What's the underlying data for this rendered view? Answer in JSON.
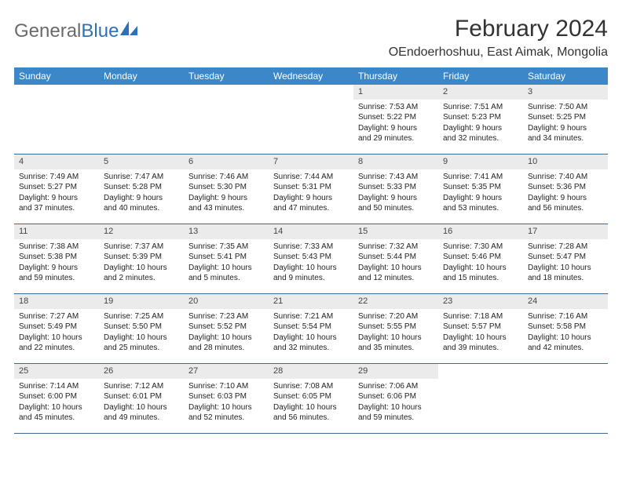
{
  "logo": {
    "text1": "General",
    "text2": "Blue"
  },
  "title": "February 2024",
  "location": "OEndoerhoshuu, East Aimak, Mongolia",
  "colors": {
    "header_bg": "#3b87c8",
    "header_text": "#ffffff",
    "daynum_bg": "#ebebeb",
    "row_border": "#3b6a94",
    "logo_blue": "#2d72b8",
    "body_bg": "#ffffff"
  },
  "day_headers": [
    "Sunday",
    "Monday",
    "Tuesday",
    "Wednesday",
    "Thursday",
    "Friday",
    "Saturday"
  ],
  "weeks": [
    [
      {
        "empty": true
      },
      {
        "empty": true
      },
      {
        "empty": true
      },
      {
        "empty": true
      },
      {
        "num": "1",
        "sunrise": "Sunrise: 7:53 AM",
        "sunset": "Sunset: 5:22 PM",
        "day1": "Daylight: 9 hours",
        "day2": "and 29 minutes."
      },
      {
        "num": "2",
        "sunrise": "Sunrise: 7:51 AM",
        "sunset": "Sunset: 5:23 PM",
        "day1": "Daylight: 9 hours",
        "day2": "and 32 minutes."
      },
      {
        "num": "3",
        "sunrise": "Sunrise: 7:50 AM",
        "sunset": "Sunset: 5:25 PM",
        "day1": "Daylight: 9 hours",
        "day2": "and 34 minutes."
      }
    ],
    [
      {
        "num": "4",
        "sunrise": "Sunrise: 7:49 AM",
        "sunset": "Sunset: 5:27 PM",
        "day1": "Daylight: 9 hours",
        "day2": "and 37 minutes."
      },
      {
        "num": "5",
        "sunrise": "Sunrise: 7:47 AM",
        "sunset": "Sunset: 5:28 PM",
        "day1": "Daylight: 9 hours",
        "day2": "and 40 minutes."
      },
      {
        "num": "6",
        "sunrise": "Sunrise: 7:46 AM",
        "sunset": "Sunset: 5:30 PM",
        "day1": "Daylight: 9 hours",
        "day2": "and 43 minutes."
      },
      {
        "num": "7",
        "sunrise": "Sunrise: 7:44 AM",
        "sunset": "Sunset: 5:31 PM",
        "day1": "Daylight: 9 hours",
        "day2": "and 47 minutes."
      },
      {
        "num": "8",
        "sunrise": "Sunrise: 7:43 AM",
        "sunset": "Sunset: 5:33 PM",
        "day1": "Daylight: 9 hours",
        "day2": "and 50 minutes."
      },
      {
        "num": "9",
        "sunrise": "Sunrise: 7:41 AM",
        "sunset": "Sunset: 5:35 PM",
        "day1": "Daylight: 9 hours",
        "day2": "and 53 minutes."
      },
      {
        "num": "10",
        "sunrise": "Sunrise: 7:40 AM",
        "sunset": "Sunset: 5:36 PM",
        "day1": "Daylight: 9 hours",
        "day2": "and 56 minutes."
      }
    ],
    [
      {
        "num": "11",
        "sunrise": "Sunrise: 7:38 AM",
        "sunset": "Sunset: 5:38 PM",
        "day1": "Daylight: 9 hours",
        "day2": "and 59 minutes."
      },
      {
        "num": "12",
        "sunrise": "Sunrise: 7:37 AM",
        "sunset": "Sunset: 5:39 PM",
        "day1": "Daylight: 10 hours",
        "day2": "and 2 minutes."
      },
      {
        "num": "13",
        "sunrise": "Sunrise: 7:35 AM",
        "sunset": "Sunset: 5:41 PM",
        "day1": "Daylight: 10 hours",
        "day2": "and 5 minutes."
      },
      {
        "num": "14",
        "sunrise": "Sunrise: 7:33 AM",
        "sunset": "Sunset: 5:43 PM",
        "day1": "Daylight: 10 hours",
        "day2": "and 9 minutes."
      },
      {
        "num": "15",
        "sunrise": "Sunrise: 7:32 AM",
        "sunset": "Sunset: 5:44 PM",
        "day1": "Daylight: 10 hours",
        "day2": "and 12 minutes."
      },
      {
        "num": "16",
        "sunrise": "Sunrise: 7:30 AM",
        "sunset": "Sunset: 5:46 PM",
        "day1": "Daylight: 10 hours",
        "day2": "and 15 minutes."
      },
      {
        "num": "17",
        "sunrise": "Sunrise: 7:28 AM",
        "sunset": "Sunset: 5:47 PM",
        "day1": "Daylight: 10 hours",
        "day2": "and 18 minutes."
      }
    ],
    [
      {
        "num": "18",
        "sunrise": "Sunrise: 7:27 AM",
        "sunset": "Sunset: 5:49 PM",
        "day1": "Daylight: 10 hours",
        "day2": "and 22 minutes."
      },
      {
        "num": "19",
        "sunrise": "Sunrise: 7:25 AM",
        "sunset": "Sunset: 5:50 PM",
        "day1": "Daylight: 10 hours",
        "day2": "and 25 minutes."
      },
      {
        "num": "20",
        "sunrise": "Sunrise: 7:23 AM",
        "sunset": "Sunset: 5:52 PM",
        "day1": "Daylight: 10 hours",
        "day2": "and 28 minutes."
      },
      {
        "num": "21",
        "sunrise": "Sunrise: 7:21 AM",
        "sunset": "Sunset: 5:54 PM",
        "day1": "Daylight: 10 hours",
        "day2": "and 32 minutes."
      },
      {
        "num": "22",
        "sunrise": "Sunrise: 7:20 AM",
        "sunset": "Sunset: 5:55 PM",
        "day1": "Daylight: 10 hours",
        "day2": "and 35 minutes."
      },
      {
        "num": "23",
        "sunrise": "Sunrise: 7:18 AM",
        "sunset": "Sunset: 5:57 PM",
        "day1": "Daylight: 10 hours",
        "day2": "and 39 minutes."
      },
      {
        "num": "24",
        "sunrise": "Sunrise: 7:16 AM",
        "sunset": "Sunset: 5:58 PM",
        "day1": "Daylight: 10 hours",
        "day2": "and 42 minutes."
      }
    ],
    [
      {
        "num": "25",
        "sunrise": "Sunrise: 7:14 AM",
        "sunset": "Sunset: 6:00 PM",
        "day1": "Daylight: 10 hours",
        "day2": "and 45 minutes."
      },
      {
        "num": "26",
        "sunrise": "Sunrise: 7:12 AM",
        "sunset": "Sunset: 6:01 PM",
        "day1": "Daylight: 10 hours",
        "day2": "and 49 minutes."
      },
      {
        "num": "27",
        "sunrise": "Sunrise: 7:10 AM",
        "sunset": "Sunset: 6:03 PM",
        "day1": "Daylight: 10 hours",
        "day2": "and 52 minutes."
      },
      {
        "num": "28",
        "sunrise": "Sunrise: 7:08 AM",
        "sunset": "Sunset: 6:05 PM",
        "day1": "Daylight: 10 hours",
        "day2": "and 56 minutes."
      },
      {
        "num": "29",
        "sunrise": "Sunrise: 7:06 AM",
        "sunset": "Sunset: 6:06 PM",
        "day1": "Daylight: 10 hours",
        "day2": "and 59 minutes."
      },
      {
        "empty": true
      },
      {
        "empty": true
      }
    ]
  ]
}
